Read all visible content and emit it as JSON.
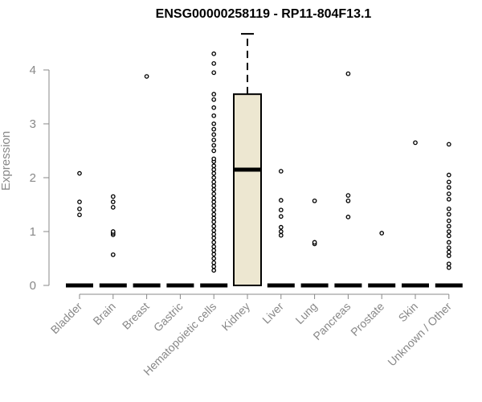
{
  "chart_data": {
    "type": "box",
    "title": "ENSG00000258119 - RP11-804F13.1",
    "xlabel": "",
    "ylabel": "Expression",
    "ylim": [
      0,
      4.68
    ],
    "yticks": [
      0,
      1,
      2,
      3,
      4
    ],
    "box_fill": "#ede7d1",
    "categories": [
      "Bladder",
      "Brain",
      "Breast",
      "Gastric",
      "Hematopoietic cells",
      "Kidney",
      "Liver",
      "Lung",
      "Pancreas",
      "Prostate",
      "Skin",
      "Unknown / Other"
    ],
    "boxes": [
      {
        "category": "Bladder",
        "min": 0,
        "q1": 0,
        "median": 0,
        "q3": 0,
        "max": 0,
        "outliers": [
          1.31,
          1.42,
          1.55,
          2.08
        ]
      },
      {
        "category": "Brain",
        "min": 0,
        "q1": 0,
        "median": 0,
        "q3": 0,
        "max": 0,
        "outliers": [
          0.57,
          0.94,
          0.97,
          1.0,
          1.45,
          1.55,
          1.65
        ]
      },
      {
        "category": "Breast",
        "min": 0,
        "q1": 0,
        "median": 0,
        "q3": 0,
        "max": 0,
        "outliers": [
          3.88
        ]
      },
      {
        "category": "Gastric",
        "min": 0,
        "q1": 0,
        "median": 0,
        "q3": 0,
        "max": 0,
        "outliers": []
      },
      {
        "category": "Hematopoietic cells",
        "min": 0,
        "q1": 0,
        "median": 0,
        "q3": 0,
        "max": 0,
        "outliers": [
          0.28,
          0.35,
          0.42,
          0.5,
          0.58,
          0.65,
          0.72,
          0.8,
          0.88,
          0.95,
          1.02,
          1.1,
          1.18,
          1.25,
          1.32,
          1.4,
          1.48,
          1.55,
          1.62,
          1.7,
          1.78,
          1.85,
          1.92,
          2.0,
          2.08,
          2.15,
          2.22,
          2.3,
          2.35,
          2.5,
          2.6,
          2.7,
          2.8,
          2.9,
          3.0,
          3.15,
          3.3,
          3.45,
          3.55,
          3.95,
          4.12,
          4.3
        ]
      },
      {
        "category": "Kidney",
        "min": 0,
        "q1": 0,
        "median": 2.15,
        "q3": 3.55,
        "max": 4.67,
        "outliers": []
      },
      {
        "category": "Liver",
        "min": 0,
        "q1": 0,
        "median": 0,
        "q3": 0,
        "max": 0,
        "outliers": [
          0.93,
          1.0,
          1.08,
          1.28,
          1.4,
          1.58,
          2.12
        ]
      },
      {
        "category": "Lung",
        "min": 0,
        "q1": 0,
        "median": 0,
        "q3": 0,
        "max": 0,
        "outliers": [
          0.77,
          0.8,
          1.57
        ]
      },
      {
        "category": "Pancreas",
        "min": 0,
        "q1": 0,
        "median": 0,
        "q3": 0,
        "max": 0,
        "outliers": [
          1.27,
          1.57,
          1.67,
          3.93
        ]
      },
      {
        "category": "Prostate",
        "min": 0,
        "q1": 0,
        "median": 0,
        "q3": 0,
        "max": 0,
        "outliers": [
          0.97
        ]
      },
      {
        "category": "Skin",
        "min": 0,
        "q1": 0,
        "median": 0,
        "q3": 0,
        "max": 0,
        "outliers": [
          2.65
        ]
      },
      {
        "category": "Unknown / Other",
        "min": 0,
        "q1": 0,
        "median": 0,
        "q3": 0,
        "max": 0,
        "outliers": [
          0.33,
          0.4,
          0.55,
          0.62,
          0.7,
          0.8,
          0.92,
          1.0,
          1.1,
          1.2,
          1.32,
          1.42,
          1.6,
          1.7,
          1.82,
          1.92,
          2.05,
          2.62
        ]
      }
    ]
  }
}
